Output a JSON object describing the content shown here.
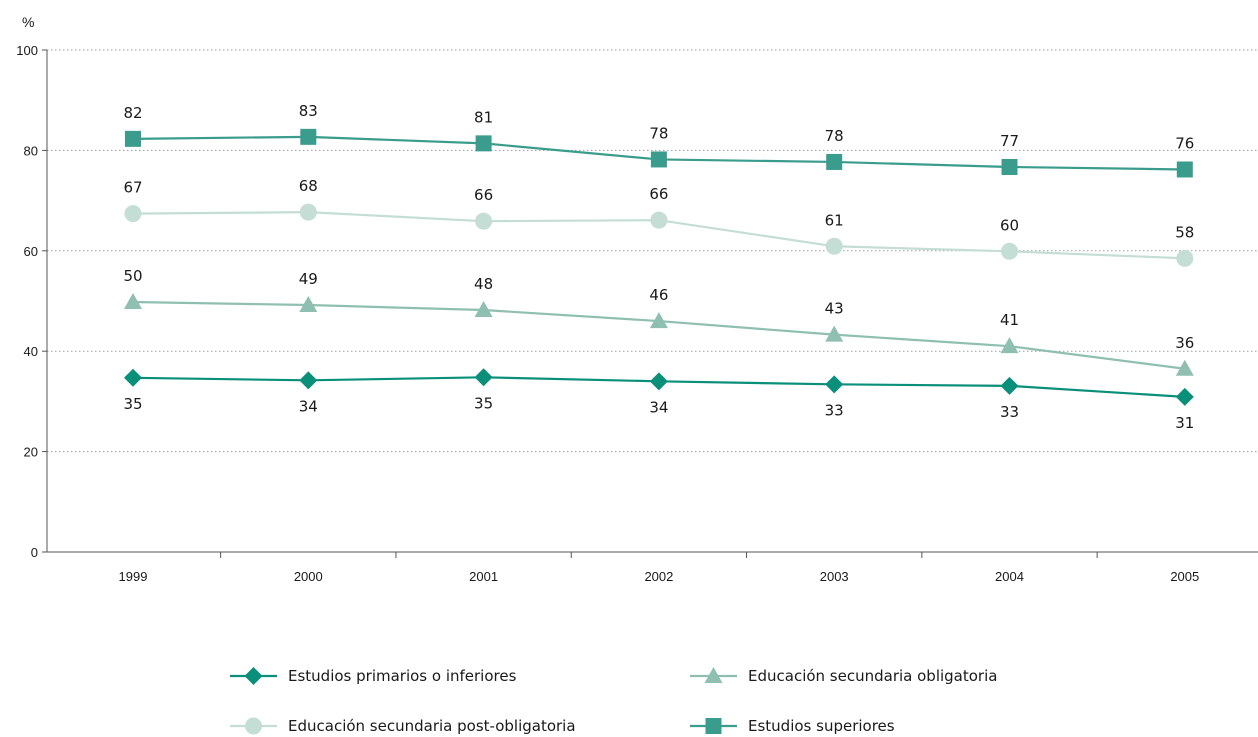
{
  "chart_data": {
    "type": "line",
    "ylabel": "%",
    "xlabel": "",
    "ylim": [
      0,
      100
    ],
    "yticks": [
      0,
      20,
      40,
      60,
      80,
      100
    ],
    "grid": true,
    "legend_position": "bottom",
    "x": [
      "1999",
      "2000",
      "2001",
      "2002",
      "2003",
      "2004",
      "2005"
    ],
    "series": [
      {
        "name": "Estudios primarios o inferiores",
        "marker": "diamond",
        "color": "#0a8f7a",
        "values": [
          34.7,
          34.2,
          34.8,
          34.0,
          33.4,
          33.1,
          30.9
        ],
        "labels": [
          "35",
          "34",
          "35",
          "34",
          "33",
          "33",
          "31"
        ],
        "label_position": "below"
      },
      {
        "name": "Educación secundaria obligatoria",
        "marker": "triangle",
        "color": "#8fbfb0",
        "values": [
          49.8,
          49.2,
          48.2,
          46.0,
          43.3,
          41.0,
          36.5
        ],
        "labels": [
          "50",
          "49",
          "48",
          "46",
          "43",
          "41",
          "36"
        ],
        "label_position": "above"
      },
      {
        "name": "Educación secundaria post-obligatoria",
        "marker": "circle",
        "color": "#c4ddd5",
        "values": [
          67.4,
          67.7,
          65.9,
          66.1,
          60.9,
          59.9,
          58.5
        ],
        "labels": [
          "67",
          "68",
          "66",
          "66",
          "61",
          "60",
          "58"
        ],
        "label_position": "above"
      },
      {
        "name": "Estudios superiores",
        "marker": "square",
        "color": "#3a9c8c",
        "values": [
          82.3,
          82.7,
          81.4,
          78.2,
          77.7,
          76.7,
          76.2
        ],
        "labels": [
          "82",
          "83",
          "81",
          "78",
          "78",
          "77",
          "76"
        ],
        "label_position": "above"
      }
    ],
    "legend_order": [
      0,
      1,
      2,
      3
    ]
  }
}
